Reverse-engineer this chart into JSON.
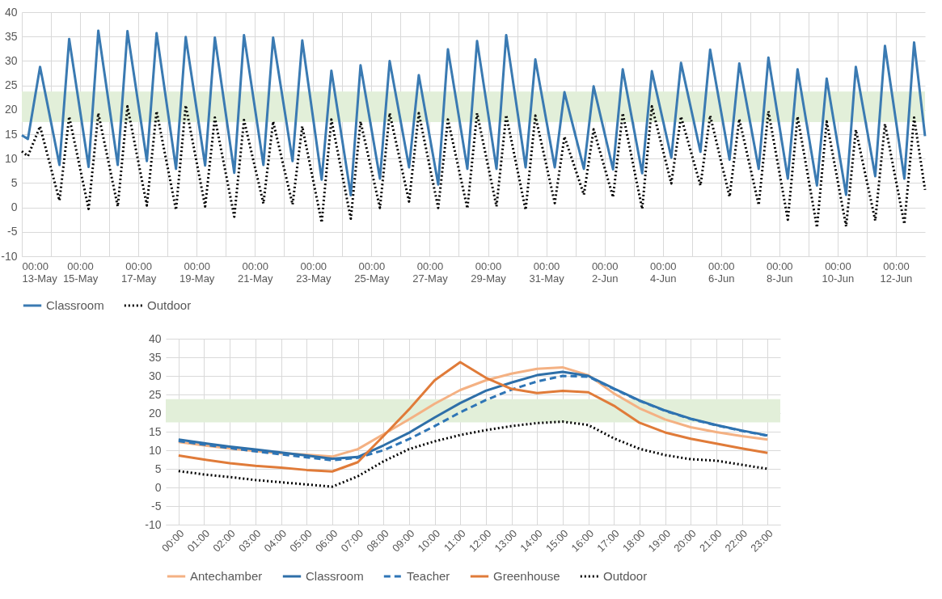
{
  "chart_data": [
    {
      "type": "line",
      "x": [
        "--05-13T00:00",
        "--05-13T05:00",
        "--05-13T15:00",
        "--05-14T07:00",
        "--05-14T15:00",
        "--05-15T07:00",
        "--05-15T15:00",
        "--05-16T07:00",
        "--05-16T15:00",
        "--05-17T07:00",
        "--05-17T15:00",
        "--05-18T07:00",
        "--05-18T15:00",
        "--05-19T07:00",
        "--05-19T15:00",
        "--05-20T07:00",
        "--05-20T15:00",
        "--05-21T07:00",
        "--05-21T15:00",
        "--05-22T07:00",
        "--05-22T15:00",
        "--05-23T07:00",
        "--05-23T15:00",
        "--05-24T07:00",
        "--05-24T15:00",
        "--05-25T07:00",
        "--05-25T15:00",
        "--05-26T07:00",
        "--05-26T15:00",
        "--05-27T07:00",
        "--05-27T15:00",
        "--05-28T07:00",
        "--05-28T15:00",
        "--05-29T07:00",
        "--05-29T15:00",
        "--05-30T07:00",
        "--05-30T15:00",
        "--05-31T07:00",
        "--05-31T15:00",
        "--06-01T07:00",
        "--06-01T15:00",
        "--06-02T07:00",
        "--06-02T15:00",
        "--06-03T07:00",
        "--06-03T15:00",
        "--06-04T07:00",
        "--06-04T15:00",
        "--06-05T07:00",
        "--06-05T15:00",
        "--06-06T07:00",
        "--06-06T15:00",
        "--06-07T07:00",
        "--06-07T15:00",
        "--06-08T07:00",
        "--06-08T15:00",
        "--06-09T07:00",
        "--06-09T15:00",
        "--06-10T07:00",
        "--06-10T15:00",
        "--06-11T07:00",
        "--06-11T15:00",
        "--06-12T07:00",
        "--06-12T15:00",
        "--06-13T00:00"
      ],
      "series": [
        {
          "name": "Classroom",
          "color": "#3a7ab2",
          "line_style": "solid",
          "values": [
            14.8,
            14.0,
            28.8,
            8.7,
            34.5,
            8.3,
            36.2,
            8.7,
            36.1,
            9.5,
            35.7,
            7.9,
            34.9,
            8.6,
            34.8,
            7.1,
            35.3,
            8.7,
            34.8,
            9.5,
            34.2,
            5.7,
            28.0,
            2.5,
            29.1,
            5.9,
            30.0,
            8.2,
            27.1,
            4.7,
            32.4,
            7.9,
            34.1,
            7.9,
            35.3,
            8.2,
            30.3,
            8.2,
            23.6,
            7.9,
            24.8,
            7.8,
            28.3,
            7.0,
            27.9,
            10.2,
            29.6,
            11.4,
            32.3,
            9.8,
            29.5,
            7.9,
            30.7,
            5.9,
            28.3,
            4.5,
            26.4,
            2.6,
            28.8,
            6.4,
            33.1,
            5.9,
            33.8,
            14.6
          ]
        },
        {
          "name": "Outdoor",
          "color": "#000000",
          "line_style": "dotted",
          "values": [
            11.5,
            10.5,
            16.6,
            1.4,
            18.6,
            -0.3,
            19.3,
            0.2,
            20.7,
            0.4,
            19.7,
            -0.5,
            20.9,
            0.2,
            18.4,
            -1.9,
            17.9,
            0.8,
            17.6,
            0.6,
            16.6,
            -3.1,
            18.0,
            -2.3,
            17.6,
            -0.1,
            19.3,
            1.2,
            19.3,
            -0.1,
            18.0,
            -0.2,
            19.3,
            0.2,
            18.9,
            -0.5,
            18.8,
            0.9,
            14.5,
            2.6,
            16.0,
            2.1,
            19.3,
            -0.3,
            20.7,
            4.9,
            18.6,
            4.5,
            18.8,
            2.2,
            18.1,
            0.5,
            19.7,
            -2.5,
            18.6,
            -4.1,
            17.6,
            -3.9,
            15.9,
            -2.7,
            17.1,
            -3.4,
            18.4,
            3.6
          ]
        }
      ],
      "xlim": [
        "--05-13T00:00",
        "--06-13T00:00"
      ],
      "xticks": [
        {
          "value": "--05-13T00:00",
          "label": "00:00\n13-May"
        },
        {
          "value": "--05-14T00:00",
          "label": null
        },
        {
          "value": "--05-15T00:00",
          "label": "00:00\n15-May"
        },
        {
          "value": "--05-16T00:00",
          "label": null
        },
        {
          "value": "--05-17T00:00",
          "label": "00:00\n17-May"
        },
        {
          "value": "--05-18T00:00",
          "label": null
        },
        {
          "value": "--05-19T00:00",
          "label": "00:00\n19-May"
        },
        {
          "value": "--05-20T00:00",
          "label": null
        },
        {
          "value": "--05-21T00:00",
          "label": "00:00\n21-May"
        },
        {
          "value": "--05-22T00:00",
          "label": null
        },
        {
          "value": "--05-23T00:00",
          "label": "00:00\n23-May"
        },
        {
          "value": "--05-24T00:00",
          "label": null
        },
        {
          "value": "--05-25T00:00",
          "label": "00:00\n25-May"
        },
        {
          "value": "--05-26T00:00",
          "label": null
        },
        {
          "value": "--05-27T00:00",
          "label": "00:00\n27-May"
        },
        {
          "value": "--05-28T00:00",
          "label": null
        },
        {
          "value": "--05-29T00:00",
          "label": "00:00\n29-May"
        },
        {
          "value": "--05-30T00:00",
          "label": null
        },
        {
          "value": "--05-31T00:00",
          "label": "00:00\n31-May"
        },
        {
          "value": "--06-01T00:00",
          "label": null
        },
        {
          "value": "--06-02T00:00",
          "label": "00:00\n2-Jun"
        },
        {
          "value": "--06-03T00:00",
          "label": null
        },
        {
          "value": "--06-04T00:00",
          "label": "00:00\n4-Jun"
        },
        {
          "value": "--06-05T00:00",
          "label": null
        },
        {
          "value": "--06-06T00:00",
          "label": "00:00\n6-Jun"
        },
        {
          "value": "--06-07T00:00",
          "label": null
        },
        {
          "value": "--06-08T00:00",
          "label": "00:00\n8-Jun"
        },
        {
          "value": "--06-09T00:00",
          "label": null
        },
        {
          "value": "--06-10T00:00",
          "label": "00:00\n10-Jun"
        },
        {
          "value": "--06-11T00:00",
          "label": null
        },
        {
          "value": "--06-12T00:00",
          "label": "00:00\n12-Jun"
        }
      ],
      "ylim": [
        -10,
        40
      ],
      "yticks": [
        -10,
        -5,
        0,
        5,
        10,
        15,
        20,
        25,
        30,
        35,
        40
      ],
      "grid": true,
      "legend": "bottom",
      "bands": [
        {
          "axis": "y",
          "from": 17.5,
          "to": 23.75,
          "color": "#e2efd9"
        }
      ]
    },
    {
      "type": "line",
      "categories": [
        "00:00",
        "01:00",
        "02:00",
        "03:00",
        "04:00",
        "05:00",
        "06:00",
        "07:00",
        "08:00",
        "09:00",
        "10:00",
        "11:00",
        "12:00",
        "13:00",
        "14:00",
        "15:00",
        "16:00",
        "17:00",
        "18:00",
        "19:00",
        "20:00",
        "21:00",
        "22:00",
        "23:00"
      ],
      "series": [
        {
          "name": "Antechamber",
          "color": "#f4b183",
          "line_style": "solid",
          "values": [
            12.2,
            11.3,
            10.5,
            9.8,
            9.2,
            8.8,
            8.3,
            10.3,
            14.3,
            18.3,
            22.5,
            26.2,
            28.8,
            30.6,
            31.9,
            32.3,
            30.2,
            25.3,
            21.3,
            18.3,
            16.2,
            14.9,
            13.8,
            12.9
          ]
        },
        {
          "name": "Classroom",
          "color": "#2e6fa8",
          "line_style": "solid",
          "values": [
            12.9,
            11.9,
            11.0,
            10.2,
            9.4,
            8.6,
            7.7,
            8.2,
            11.3,
            14.7,
            18.8,
            22.7,
            26.0,
            28.2,
            30.2,
            31.1,
            30.0,
            26.6,
            23.4,
            20.7,
            18.5,
            16.8,
            15.3,
            14.0
          ]
        },
        {
          "name": "Teacher",
          "color": "#2e75b6",
          "line_style": "dashed",
          "values": [
            12.5,
            11.5,
            10.6,
            9.7,
            8.9,
            8.1,
            7.3,
            8.0,
            10.0,
            13.0,
            16.5,
            20.2,
            23.5,
            26.3,
            28.5,
            30.0,
            29.8,
            26.5,
            23.3,
            20.6,
            18.4,
            16.7,
            15.2,
            13.9
          ]
        },
        {
          "name": "Greenhouse",
          "color": "#e07b39",
          "line_style": "solid",
          "values": [
            8.6,
            7.5,
            6.5,
            5.8,
            5.3,
            4.7,
            4.3,
            6.8,
            13.8,
            21.0,
            28.8,
            33.7,
            29.5,
            26.5,
            25.4,
            26.0,
            25.6,
            22.0,
            17.4,
            14.8,
            13.1,
            11.8,
            10.5,
            9.3
          ]
        },
        {
          "name": "Outdoor",
          "color": "#000000",
          "line_style": "dotted",
          "values": [
            4.4,
            3.5,
            2.8,
            2.0,
            1.4,
            0.8,
            0.2,
            3.0,
            7.0,
            10.3,
            12.4,
            14.1,
            15.4,
            16.5,
            17.3,
            17.7,
            16.8,
            13.2,
            10.4,
            8.7,
            7.6,
            7.2,
            6.1,
            5.0
          ]
        }
      ],
      "ylim": [
        -10,
        40
      ],
      "yticks": [
        -10,
        -5,
        0,
        5,
        10,
        15,
        20,
        25,
        30,
        35,
        40
      ],
      "grid": true,
      "legend": "bottom",
      "bands": [
        {
          "axis": "y",
          "from": 17.5,
          "to": 23.75,
          "color": "#e2efd9"
        }
      ]
    }
  ]
}
